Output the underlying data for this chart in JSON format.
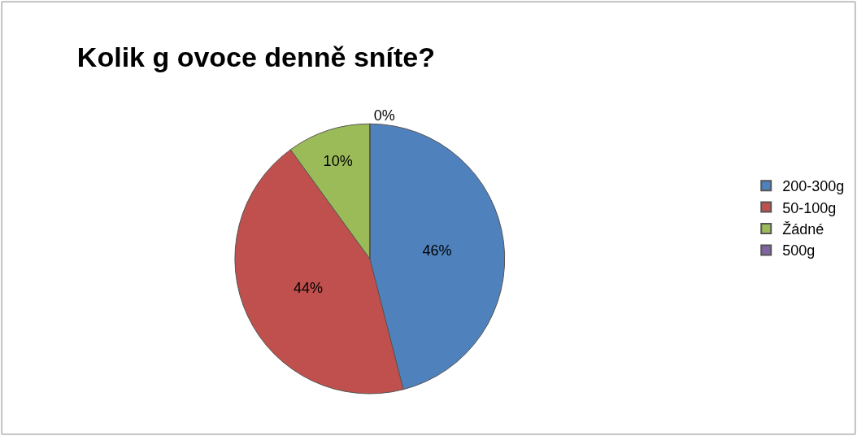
{
  "chart_data": {
    "type": "pie",
    "title": "Kolik g ovoce denně sníte?",
    "categories": [
      "200-300g",
      "50-100g",
      "Žádné",
      "500g"
    ],
    "values": [
      46,
      44,
      10,
      0
    ],
    "colors": [
      "#4f81bd",
      "#c0504d",
      "#9bbb59",
      "#8064a2"
    ],
    "value_labels": [
      "46%",
      "44%",
      "10%",
      "0%"
    ],
    "legend": "right"
  }
}
